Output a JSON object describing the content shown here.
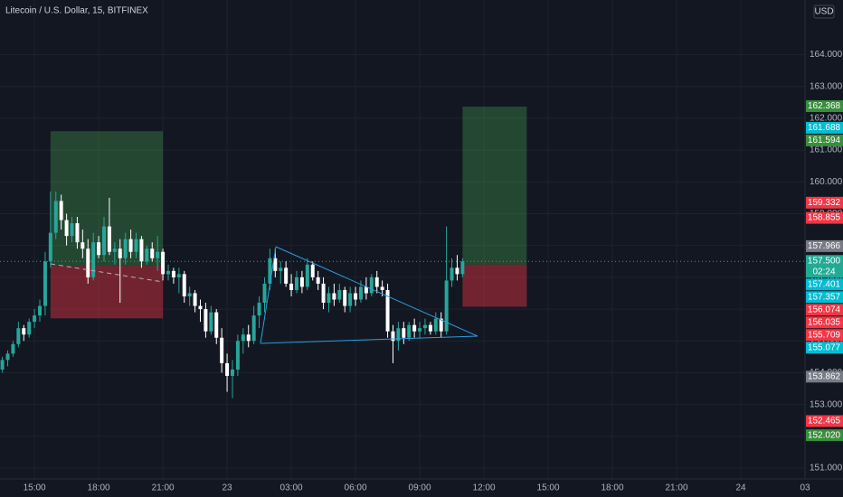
{
  "chart_data": {
    "type": "candlestick",
    "title": "Litecoin / U.S. Dollar, 15, BITFINEX",
    "currency": "USD",
    "up_color": "#26a69a",
    "down_color": "#ffffff",
    "grid": true,
    "xlim": [
      13.39,
      51.0
    ],
    "ylim": [
      150.66,
      165.72
    ],
    "xticks": [
      {
        "value": 15,
        "label": "15:00"
      },
      {
        "value": 18,
        "label": "18:00"
      },
      {
        "value": 21,
        "label": "21:00"
      },
      {
        "value": 24,
        "label": "23"
      },
      {
        "value": 27,
        "label": "03:00"
      },
      {
        "value": 30,
        "label": "06:00"
      },
      {
        "value": 33,
        "label": "09:00"
      },
      {
        "value": 36,
        "label": "12:00"
      },
      {
        "value": 39,
        "label": "15:00"
      },
      {
        "value": 42,
        "label": "18:00"
      },
      {
        "value": 45,
        "label": "21:00"
      },
      {
        "value": 48,
        "label": "24"
      },
      {
        "value": 51,
        "label": "03"
      }
    ],
    "yticks": [
      {
        "value": 151,
        "label": "151.000"
      },
      {
        "value": 152,
        "label": "152.000"
      },
      {
        "value": 153,
        "label": "153.000"
      },
      {
        "value": 154,
        "label": "154.000"
      },
      {
        "value": 155,
        "label": "155.000"
      },
      {
        "value": 156,
        "label": "156.000"
      },
      {
        "value": 157,
        "label": "157.000"
      },
      {
        "value": 158,
        "label": "158.000"
      },
      {
        "value": 159,
        "label": "159.000"
      },
      {
        "value": 160,
        "label": "160.000"
      },
      {
        "value": 161,
        "label": "161.000"
      },
      {
        "value": 162,
        "label": "162.000"
      },
      {
        "value": 163,
        "label": "163.000"
      },
      {
        "value": 164,
        "label": "164.000"
      }
    ],
    "x": [
      13.5,
      13.75,
      14,
      14.25,
      14.5,
      14.75,
      15,
      15.25,
      15.5,
      15.75,
      16,
      16.25,
      16.5,
      16.75,
      17,
      17.25,
      17.5,
      17.75,
      18,
      18.25,
      18.5,
      18.75,
      19,
      19.25,
      19.5,
      19.75,
      20,
      20.25,
      20.5,
      20.75,
      21,
      21.25,
      21.5,
      21.75,
      22,
      22.25,
      22.5,
      22.75,
      23,
      23.25,
      23.5,
      23.75,
      24,
      24.25,
      24.5,
      24.75,
      25,
      25.25,
      25.5,
      25.75,
      26,
      26.25,
      26.5,
      26.75,
      27,
      27.25,
      27.5,
      27.75,
      28,
      28.25,
      28.5,
      28.75,
      29,
      29.25,
      29.5,
      29.75,
      30,
      30.25,
      30.5,
      30.75,
      31,
      31.25,
      31.5,
      31.75,
      32,
      32.25,
      32.5,
      32.75,
      33,
      33.25,
      33.5,
      33.75,
      34,
      34.25,
      34.5,
      34.75,
      35
    ],
    "open": [
      154.1,
      154.4,
      154.6,
      154.9,
      155.4,
      155.2,
      155.6,
      155.8,
      156.1,
      157.5,
      158.4,
      159.4,
      158.8,
      158.3,
      158.7,
      158.1,
      157.9,
      157.0,
      158.1,
      157.7,
      158.6,
      157.8,
      157.9,
      157.6,
      158.2,
      157.8,
      158.2,
      157.5,
      157.9,
      157.6,
      157.8,
      157.1,
      157.2,
      157.0,
      157.1,
      156.4,
      156.5,
      156.1,
      156.0,
      155.3,
      155.9,
      155.1,
      154.3,
      153.9,
      154.1,
      155.0,
      155.2,
      155.0,
      155.8,
      156.2,
      156.8,
      157.6,
      157.2,
      157.3,
      156.8,
      156.6,
      157.0,
      156.7,
      157.4,
      157.0,
      156.8,
      156.2,
      156.5,
      156.3,
      156.6,
      156.1,
      156.5,
      156.3,
      156.7,
      156.5,
      157.0,
      156.7,
      156.6,
      155.3,
      155.0,
      155.4,
      155.1,
      155.5,
      155.3,
      155.4,
      155.5,
      155.3,
      155.7,
      155.3,
      156.9,
      157.3,
      157.1
    ],
    "high": [
      154.5,
      154.7,
      155.0,
      155.6,
      155.5,
      155.7,
      156.0,
      156.3,
      157.8,
      159.7,
      159.7,
      159.6,
      159.0,
      158.9,
      158.9,
      158.5,
      158.2,
      158.4,
      158.3,
      158.9,
      159.5,
      158.1,
      158.2,
      158.4,
      158.5,
      158.4,
      158.3,
      158.0,
      158.1,
      158.3,
      157.9,
      157.4,
      157.3,
      157.3,
      157.2,
      156.7,
      156.6,
      156.3,
      156.2,
      156.1,
      156.0,
      155.4,
      154.6,
      154.4,
      155.2,
      155.4,
      155.5,
      156.1,
      156.4,
      157.0,
      157.9,
      157.9,
      157.5,
      157.5,
      157.1,
      157.2,
      157.2,
      157.6,
      157.5,
      157.2,
      157.0,
      156.7,
      156.8,
      156.8,
      156.7,
      156.7,
      156.7,
      156.9,
      157.0,
      157.1,
      157.2,
      156.9,
      156.8,
      155.5,
      155.6,
      155.6,
      155.6,
      155.7,
      155.6,
      155.7,
      155.6,
      155.9,
      155.9,
      158.6,
      157.6,
      157.7,
      157.6
    ],
    "low": [
      154.0,
      154.2,
      154.5,
      154.8,
      155.0,
      155.1,
      155.4,
      155.6,
      155.8,
      157.3,
      158.2,
      158.5,
      158.0,
      158.1,
      157.9,
      157.6,
      156.8,
      156.9,
      157.6,
      157.5,
      157.7,
      157.4,
      156.2,
      157.4,
      157.6,
      157.6,
      157.3,
      157.4,
      157.5,
      157.2,
      156.9,
      156.9,
      156.8,
      156.5,
      156.2,
      156.1,
      155.9,
      155.6,
      155.1,
      155.2,
      154.9,
      154.0,
      153.4,
      153.2,
      153.9,
      154.6,
      154.8,
      154.9,
      155.4,
      155.9,
      156.6,
      157.0,
      156.8,
      156.7,
      156.4,
      156.5,
      156.5,
      156.6,
      156.9,
      156.6,
      156.0,
      155.9,
      156.1,
      156.2,
      155.9,
      155.9,
      156.1,
      156.2,
      156.3,
      156.4,
      156.5,
      156.4,
      155.1,
      154.3,
      154.7,
      154.9,
      155.0,
      155.1,
      155.1,
      155.2,
      155.2,
      155.2,
      155.1,
      155.2,
      156.7,
      156.9,
      157.0
    ],
    "close": [
      154.4,
      154.6,
      154.9,
      155.4,
      155.2,
      155.6,
      155.8,
      156.1,
      157.5,
      158.4,
      159.4,
      158.8,
      158.3,
      158.7,
      158.1,
      157.9,
      157.0,
      158.1,
      157.7,
      158.6,
      157.8,
      157.9,
      157.6,
      158.2,
      157.8,
      158.2,
      157.5,
      157.9,
      157.6,
      157.8,
      157.1,
      157.2,
      157.0,
      157.1,
      156.4,
      156.5,
      156.1,
      156.0,
      155.3,
      155.9,
      155.1,
      154.3,
      153.9,
      154.1,
      155.0,
      155.2,
      155.0,
      155.8,
      156.2,
      156.8,
      157.6,
      157.2,
      157.3,
      156.8,
      156.6,
      157.0,
      156.7,
      157.4,
      157.0,
      156.8,
      156.2,
      156.5,
      156.3,
      156.6,
      156.1,
      156.5,
      156.3,
      156.7,
      156.5,
      157.0,
      156.7,
      156.6,
      155.3,
      155.0,
      155.4,
      155.1,
      155.5,
      155.3,
      155.4,
      155.5,
      155.3,
      155.7,
      155.3,
      156.9,
      157.3,
      157.1,
      157.5
    ],
    "positions": [
      {
        "x": [
          15.75,
          21.0
        ],
        "target": 161.594,
        "entry": 157.357,
        "stop": 155.709
      },
      {
        "x": [
          35.0,
          38.0
        ],
        "target": 162.368,
        "entry": 157.401,
        "stop": 156.074
      }
    ],
    "last_price": {
      "value": 157.5,
      "label": "157.500",
      "countdown": "02:24",
      "color": "#22ab94"
    },
    "price_labels": [
      {
        "value": 162.368,
        "label": "162.368",
        "color": "#388e3c"
      },
      {
        "value": 161.688,
        "label": "161.688",
        "color": "#00bcd4"
      },
      {
        "value": 161.594,
        "label": "161.594",
        "color": "#388e3c"
      },
      {
        "value": 159.332,
        "label": "159.332",
        "color": "#f23645"
      },
      {
        "value": 158.855,
        "label": "158.855",
        "color": "#f23645"
      },
      {
        "value": 157.966,
        "label": "157.966",
        "color": "#787b86"
      },
      {
        "value": 157.401,
        "label": "157.401",
        "color": "#00bcd4"
      },
      {
        "value": 157.357,
        "label": "157.357",
        "color": "#00bcd4"
      },
      {
        "value": 156.074,
        "label": "156.074",
        "color": "#f23645"
      },
      {
        "value": 156.035,
        "label": "156.035",
        "color": "#f23645"
      },
      {
        "value": 155.709,
        "label": "155.709",
        "color": "#f23645"
      },
      {
        "value": 155.077,
        "label": "155.077",
        "color": "#00bcd4"
      },
      {
        "value": 153.862,
        "label": "153.862",
        "color": "#787b86"
      },
      {
        "value": 152.465,
        "label": "152.465",
        "color": "#f23645"
      },
      {
        "value": 152.02,
        "label": "152.020",
        "color": "#388e3c"
      }
    ]
  }
}
